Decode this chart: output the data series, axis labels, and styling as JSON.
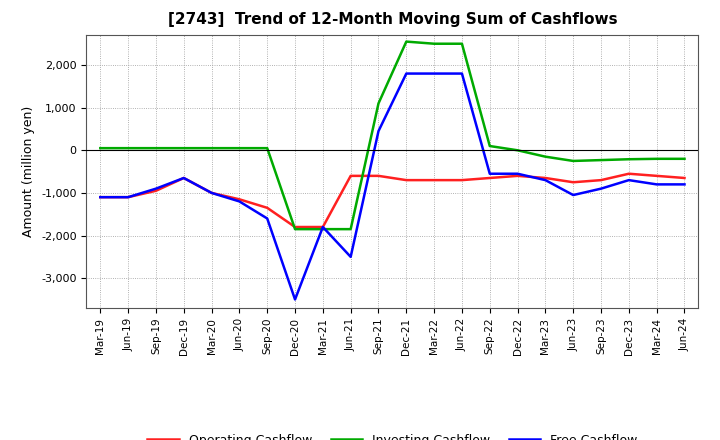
{
  "title": "[2743]  Trend of 12-Month Moving Sum of Cashflows",
  "ylabel": "Amount (million yen)",
  "background_color": "#ffffff",
  "plot_background": "#ffffff",
  "grid_color": "#999999",
  "xlabels": [
    "Mar-19",
    "Jun-19",
    "Sep-19",
    "Dec-19",
    "Mar-20",
    "Jun-20",
    "Sep-20",
    "Dec-20",
    "Mar-21",
    "Jun-21",
    "Sep-21",
    "Dec-21",
    "Mar-22",
    "Jun-22",
    "Sep-22",
    "Dec-22",
    "Mar-23",
    "Jun-23",
    "Sep-23",
    "Dec-23",
    "Mar-24",
    "Jun-24"
  ],
  "operating": [
    -1100,
    -1100,
    -950,
    -650,
    -1000,
    -1150,
    -1350,
    -1800,
    -1800,
    -600,
    -600,
    -700,
    -700,
    -700,
    -650,
    -600,
    -650,
    -750,
    -700,
    -550,
    -600,
    -650
  ],
  "investing": [
    50,
    50,
    50,
    50,
    50,
    50,
    50,
    -1850,
    -1850,
    -1850,
    1100,
    2550,
    2500,
    2500,
    100,
    0,
    -150,
    -250,
    -230,
    -210,
    -200,
    -200
  ],
  "free": [
    -1100,
    -1100,
    -900,
    -650,
    -1000,
    -1200,
    -1600,
    -3500,
    -1800,
    -2500,
    450,
    1800,
    1800,
    1800,
    -550,
    -550,
    -700,
    -1050,
    -900,
    -700,
    -800,
    -800
  ],
  "operating_color": "#ff2020",
  "investing_color": "#00aa00",
  "free_color": "#0000ff",
  "ylim": [
    -3700,
    2700
  ],
  "yticks": [
    -3000,
    -2000,
    -1000,
    0,
    1000,
    2000
  ],
  "legend_labels": [
    "Operating Cashflow",
    "Investing Cashflow",
    "Free Cashflow"
  ]
}
